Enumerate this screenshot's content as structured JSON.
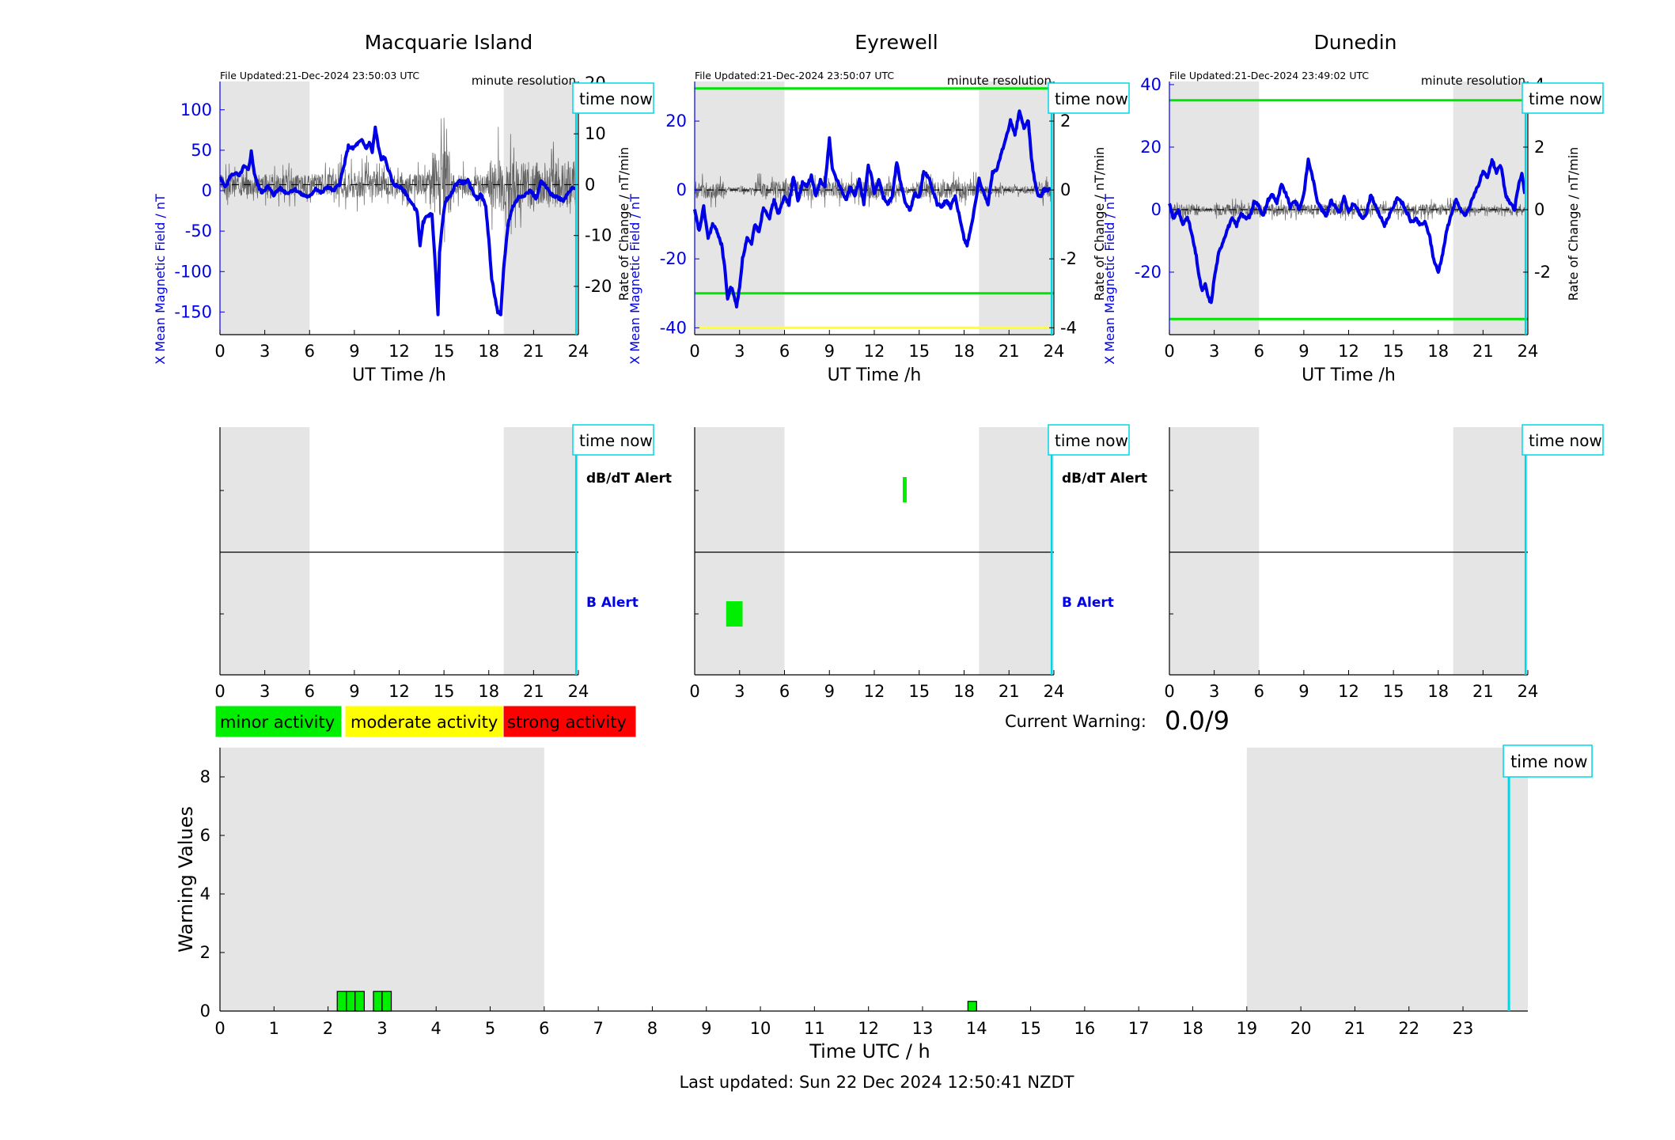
{
  "colors": {
    "field": "#0000e6",
    "rate": "#000000",
    "night_shade": "#e5e5e5",
    "time_now": "#00d6e6",
    "minor": "#00ee00",
    "moderate": "#ffff00",
    "strong": "#ff0000",
    "threshold_green": "#00e600",
    "threshold_yellow": "#ffff33"
  },
  "stations": [
    {
      "title": "Macquarie Island",
      "file_updated": "File Updated:21-Dec-2024 23:50:03 UTC",
      "resolution": "minute resolution",
      "time_now_label": "time now",
      "y_label_left": "X Mean Magnetic Field / nT",
      "y_label_right": "Rate of Change / nT/min",
      "x_label": "UT Time /h",
      "x_ticks": [
        0,
        3,
        6,
        9,
        12,
        15,
        18,
        21,
        24
      ],
      "y_left_ticks": [
        100,
        50,
        0,
        -50,
        -100,
        -150
      ],
      "y_left_range": [
        -178,
        135
      ],
      "y_right_ticks": [
        20,
        10,
        0,
        -10,
        -20
      ],
      "y_right_range": [
        -29.5,
        20.3
      ],
      "thresholds": [],
      "night_spans": [
        [
          0,
          6
        ],
        [
          19,
          24
        ]
      ],
      "time_now_h": 23.85,
      "field_trace": [
        [
          0,
          15
        ],
        [
          0.4,
          5
        ],
        [
          0.7,
          18
        ],
        [
          1,
          22
        ],
        [
          1.3,
          18
        ],
        [
          1.6,
          30
        ],
        [
          1.9,
          25
        ],
        [
          2.1,
          48
        ],
        [
          2.3,
          22
        ],
        [
          2.5,
          8
        ],
        [
          2.8,
          -2
        ],
        [
          3.2,
          5
        ],
        [
          3.6,
          -5
        ],
        [
          4,
          3
        ],
        [
          4.5,
          -3
        ],
        [
          5,
          2
        ],
        [
          5.5,
          -5
        ],
        [
          6,
          -8
        ],
        [
          6.4,
          3
        ],
        [
          6.8,
          -3
        ],
        [
          7.2,
          5
        ],
        [
          7.6,
          0
        ],
        [
          8,
          8
        ],
        [
          8.3,
          30
        ],
        [
          8.6,
          55
        ],
        [
          8.9,
          52
        ],
        [
          9.2,
          58
        ],
        [
          9.5,
          62
        ],
        [
          9.8,
          52
        ],
        [
          10,
          60
        ],
        [
          10.2,
          48
        ],
        [
          10.4,
          78
        ],
        [
          10.6,
          55
        ],
        [
          10.8,
          38
        ],
        [
          11,
          42
        ],
        [
          11.3,
          25
        ],
        [
          11.6,
          8
        ],
        [
          12,
          5
        ],
        [
          12.4,
          -2
        ],
        [
          12.8,
          -15
        ],
        [
          13.2,
          -25
        ],
        [
          13.4,
          -68
        ],
        [
          13.6,
          -40
        ],
        [
          13.9,
          -30
        ],
        [
          14.2,
          -30
        ],
        [
          14.4,
          -85
        ],
        [
          14.6,
          -155
        ],
        [
          14.7,
          -75
        ],
        [
          14.9,
          -40
        ],
        [
          15.1,
          -12
        ],
        [
          15.4,
          -8
        ],
        [
          15.7,
          5
        ],
        [
          16,
          12
        ],
        [
          16.3,
          10
        ],
        [
          16.6,
          12
        ],
        [
          16.9,
          0
        ],
        [
          17.2,
          -10
        ],
        [
          17.5,
          -5
        ],
        [
          17.8,
          -20
        ],
        [
          18,
          -60
        ],
        [
          18.2,
          -110
        ],
        [
          18.4,
          -130
        ],
        [
          18.6,
          -150
        ],
        [
          18.8,
          -155
        ],
        [
          19,
          -95
        ],
        [
          19.3,
          -40
        ],
        [
          19.6,
          -20
        ],
        [
          20,
          -8
        ],
        [
          20.4,
          -5
        ],
        [
          20.8,
          0
        ],
        [
          21.2,
          -10
        ],
        [
          21.5,
          12
        ],
        [
          21.8,
          5
        ],
        [
          22.2,
          -5
        ],
        [
          22.6,
          -8
        ],
        [
          23,
          -12
        ],
        [
          23.3,
          -3
        ],
        [
          23.6,
          5
        ],
        [
          23.85,
          2
        ]
      ],
      "rate_amplitude": 6,
      "rate_bursts": [
        [
          14,
          15.5,
          3
        ],
        [
          18,
          19,
          2.5
        ],
        [
          19,
          23.8,
          2.2
        ],
        [
          8,
          11,
          1.3
        ]
      ]
    },
    {
      "title": "Eyrewell",
      "file_updated": "File Updated:21-Dec-2024 23:50:07 UTC",
      "resolution": "minute resolution",
      "time_now_label": "time now",
      "y_label_left": "X Mean Magnetic Field / nT",
      "y_label_right": "Rate of Change / nT/min",
      "x_label": "UT Time /h",
      "x_ticks": [
        0,
        3,
        6,
        9,
        12,
        15,
        18,
        21,
        24
      ],
      "y_left_ticks": [
        20,
        0,
        -20,
        -40
      ],
      "y_left_range": [
        -42,
        31.5
      ],
      "y_right_ticks": [
        2,
        0,
        -2,
        -4
      ],
      "y_right_range": [
        -4.2,
        3.15
      ],
      "thresholds": [
        {
          "y": 29.5,
          "color": "#00e600"
        },
        {
          "y": -30,
          "color": "#00e600"
        },
        {
          "y": -40,
          "color": "#ffff33"
        }
      ],
      "night_spans": [
        [
          0,
          6
        ],
        [
          19,
          24
        ]
      ],
      "time_now_h": 23.85,
      "field_trace": [
        [
          0,
          -6
        ],
        [
          0.3,
          -12
        ],
        [
          0.6,
          -5
        ],
        [
          0.9,
          -14
        ],
        [
          1.2,
          -10
        ],
        [
          1.5,
          -12
        ],
        [
          1.8,
          -16
        ],
        [
          2,
          -22
        ],
        [
          2.2,
          -32
        ],
        [
          2.4,
          -28
        ],
        [
          2.6,
          -30
        ],
        [
          2.8,
          -34
        ],
        [
          3,
          -28
        ],
        [
          3.2,
          -20
        ],
        [
          3.5,
          -14
        ],
        [
          3.8,
          -16
        ],
        [
          4,
          -10
        ],
        [
          4.3,
          -12
        ],
        [
          4.6,
          -5
        ],
        [
          5,
          -8
        ],
        [
          5.3,
          -3
        ],
        [
          5.6,
          -7
        ],
        [
          6,
          -2
        ],
        [
          6.3,
          -4
        ],
        [
          6.6,
          4
        ],
        [
          6.9,
          -3
        ],
        [
          7.2,
          2
        ],
        [
          7.5,
          1
        ],
        [
          7.8,
          4
        ],
        [
          8.1,
          -2
        ],
        [
          8.4,
          3
        ],
        [
          8.7,
          1
        ],
        [
          9,
          15
        ],
        [
          9.2,
          6
        ],
        [
          9.5,
          3
        ],
        [
          9.8,
          0
        ],
        [
          10.1,
          -3
        ],
        [
          10.4,
          1
        ],
        [
          10.7,
          -2
        ],
        [
          11,
          3
        ],
        [
          11.3,
          -4
        ],
        [
          11.6,
          7
        ],
        [
          11.8,
          4
        ],
        [
          12,
          -1
        ],
        [
          12.3,
          3
        ],
        [
          12.6,
          -2
        ],
        [
          12.9,
          -4
        ],
        [
          13.2,
          -2
        ],
        [
          13.5,
          8
        ],
        [
          13.8,
          1
        ],
        [
          14.1,
          -4
        ],
        [
          14.4,
          -6
        ],
        [
          14.7,
          -1
        ],
        [
          15,
          -2
        ],
        [
          15.3,
          5
        ],
        [
          15.6,
          4
        ],
        [
          15.9,
          0
        ],
        [
          16.2,
          -4
        ],
        [
          16.5,
          -5
        ],
        [
          16.8,
          -3
        ],
        [
          17.1,
          -5
        ],
        [
          17.4,
          -2
        ],
        [
          17.7,
          -8
        ],
        [
          18,
          -14
        ],
        [
          18.2,
          -16
        ],
        [
          18.5,
          -10
        ],
        [
          18.8,
          -3
        ],
        [
          19,
          3
        ],
        [
          19.3,
          -1
        ],
        [
          19.6,
          -4
        ],
        [
          19.9,
          5
        ],
        [
          20.2,
          6
        ],
        [
          20.5,
          11
        ],
        [
          20.8,
          15
        ],
        [
          21.1,
          20
        ],
        [
          21.4,
          16
        ],
        [
          21.7,
          23
        ],
        [
          22,
          18
        ],
        [
          22.3,
          20
        ],
        [
          22.5,
          9
        ],
        [
          22.7,
          3
        ],
        [
          22.9,
          -1
        ],
        [
          23.1,
          -2
        ],
        [
          23.3,
          0
        ],
        [
          23.85,
          0
        ]
      ],
      "rate_amplitude": 0.7,
      "rate_bursts": [
        [
          19,
          23,
          0.5
        ],
        [
          2,
          4,
          0.3
        ],
        [
          13.5,
          14.5,
          0.4
        ]
      ]
    },
    {
      "title": "Dunedin",
      "file_updated": "File Updated:21-Dec-2024 23:49:02 UTC",
      "resolution": "minute resolution",
      "time_now_label": "time now",
      "y_label_left": "X Mean Magnetic Field / nT",
      "y_label_right": "Rate of Change / nT/min",
      "x_label": "UT Time /h",
      "x_ticks": [
        0,
        3,
        6,
        9,
        12,
        15,
        18,
        21,
        24
      ],
      "y_left_ticks": [
        40,
        20,
        0,
        -20
      ],
      "y_left_range": [
        -40,
        41
      ],
      "y_right_ticks": [
        4,
        2,
        0,
        -2
      ],
      "y_right_range": [
        -4,
        4.1
      ],
      "thresholds": [
        {
          "y": 35,
          "color": "#00e600"
        },
        {
          "y": -35,
          "color": "#00e600"
        }
      ],
      "night_spans": [
        [
          0,
          6
        ],
        [
          19,
          24
        ]
      ],
      "time_now_h": 23.85,
      "field_trace": [
        [
          0,
          2
        ],
        [
          0.3,
          -3
        ],
        [
          0.6,
          0
        ],
        [
          0.9,
          -5
        ],
        [
          1.2,
          -2
        ],
        [
          1.5,
          -8
        ],
        [
          1.8,
          -15
        ],
        [
          2,
          -22
        ],
        [
          2.2,
          -26
        ],
        [
          2.4,
          -24
        ],
        [
          2.6,
          -28
        ],
        [
          2.8,
          -30
        ],
        [
          3,
          -22
        ],
        [
          3.3,
          -14
        ],
        [
          3.6,
          -10
        ],
        [
          3.9,
          -6
        ],
        [
          4.2,
          -3
        ],
        [
          4.5,
          -5
        ],
        [
          4.8,
          -1
        ],
        [
          5.1,
          -3
        ],
        [
          5.4,
          -2
        ],
        [
          5.7,
          3
        ],
        [
          6,
          1
        ],
        [
          6.3,
          -2
        ],
        [
          6.6,
          3
        ],
        [
          6.9,
          5
        ],
        [
          7.2,
          2
        ],
        [
          7.5,
          8
        ],
        [
          7.8,
          5
        ],
        [
          8.1,
          1
        ],
        [
          8.4,
          3
        ],
        [
          8.7,
          0
        ],
        [
          9,
          5
        ],
        [
          9.3,
          16
        ],
        [
          9.6,
          10
        ],
        [
          9.9,
          3
        ],
        [
          10.2,
          0
        ],
        [
          10.5,
          -2
        ],
        [
          10.8,
          3
        ],
        [
          11.1,
          1
        ],
        [
          11.4,
          -1
        ],
        [
          11.7,
          4
        ],
        [
          12,
          -1
        ],
        [
          12.3,
          2
        ],
        [
          12.6,
          0
        ],
        [
          12.9,
          -3
        ],
        [
          13.2,
          -1
        ],
        [
          13.5,
          5
        ],
        [
          13.8,
          1
        ],
        [
          14.1,
          -2
        ],
        [
          14.4,
          -5
        ],
        [
          14.7,
          -2
        ],
        [
          15,
          1
        ],
        [
          15.3,
          4
        ],
        [
          15.6,
          2
        ],
        [
          15.9,
          -1
        ],
        [
          16.2,
          -4
        ],
        [
          16.5,
          -3
        ],
        [
          16.8,
          -5
        ],
        [
          17.1,
          -4
        ],
        [
          17.4,
          -8
        ],
        [
          17.7,
          -16
        ],
        [
          18,
          -20
        ],
        [
          18.3,
          -14
        ],
        [
          18.6,
          -6
        ],
        [
          18.9,
          -1
        ],
        [
          19.2,
          3
        ],
        [
          19.5,
          0
        ],
        [
          19.8,
          -2
        ],
        [
          20.1,
          1
        ],
        [
          20.4,
          5
        ],
        [
          20.7,
          8
        ],
        [
          21,
          12
        ],
        [
          21.3,
          10
        ],
        [
          21.6,
          16
        ],
        [
          21.9,
          12
        ],
        [
          22.2,
          14
        ],
        [
          22.5,
          5
        ],
        [
          22.8,
          2
        ],
        [
          23.1,
          0
        ],
        [
          23.4,
          8
        ],
        [
          23.6,
          12
        ],
        [
          23.85,
          3
        ]
      ],
      "rate_amplitude": 0.5,
      "rate_bursts": [
        [
          19,
          23.8,
          0.6
        ],
        [
          2,
          3,
          0.4
        ],
        [
          14.5,
          15.2,
          0.4
        ]
      ]
    }
  ],
  "alert_panels": [
    {
      "time_now_label": "time now",
      "dbdt_label": "dB/dT Alert",
      "b_label": "B Alert",
      "x_ticks": [
        0,
        3,
        6,
        9,
        12,
        15,
        18,
        21,
        24
      ],
      "dbdt_events": [],
      "b_events": [],
      "show_labels": true
    },
    {
      "time_now_label": "time now",
      "dbdt_label": "dB/dT Alert",
      "b_label": "B Alert",
      "x_ticks": [
        0,
        3,
        6,
        9,
        12,
        15,
        18,
        21,
        24
      ],
      "dbdt_events": [
        [
          13.9,
          14.05
        ]
      ],
      "b_events": [
        [
          2.1,
          3.2
        ]
      ],
      "show_labels": true
    },
    {
      "time_now_label": "time now",
      "dbdt_label": "",
      "b_label": "",
      "x_ticks": [
        0,
        3,
        6,
        9,
        12,
        15,
        18,
        21,
        24
      ],
      "dbdt_events": [],
      "b_events": [],
      "show_labels": false
    }
  ],
  "legend": {
    "minor": "minor activity",
    "moderate": "moderate activity",
    "strong": "strong activity"
  },
  "current_warning": {
    "label": "Current Warning:",
    "value": "0.0/9"
  },
  "chart_data": {
    "type": "bar",
    "ylabel": "Warning Values",
    "xlabel": "Time UTC / h",
    "ylim": [
      0,
      9
    ],
    "xlim": [
      0,
      24.2
    ],
    "y_ticks": [
      0,
      2,
      4,
      6,
      8
    ],
    "x_ticks": [
      0,
      1,
      2,
      3,
      4,
      5,
      6,
      7,
      8,
      9,
      10,
      11,
      12,
      13,
      14,
      15,
      16,
      17,
      18,
      19,
      20,
      21,
      22,
      23
    ],
    "night_spans": [
      [
        0,
        6
      ],
      [
        19,
        24.2
      ]
    ],
    "time_now_h": 23.85,
    "time_now_label": "time now",
    "bars": [
      {
        "x0": 2.17,
        "x1": 2.34,
        "value": 0.67
      },
      {
        "x0": 2.34,
        "x1": 2.5,
        "value": 0.67
      },
      {
        "x0": 2.5,
        "x1": 2.67,
        "value": 0.67
      },
      {
        "x0": 2.84,
        "x1": 3.0,
        "value": 0.67
      },
      {
        "x0": 3.0,
        "x1": 3.17,
        "value": 0.67
      },
      {
        "x0": 13.84,
        "x1": 14.0,
        "value": 0.33
      }
    ]
  },
  "footer": {
    "last_updated": "Last updated: Sun 22 Dec 2024 12:50:41 NZDT"
  }
}
